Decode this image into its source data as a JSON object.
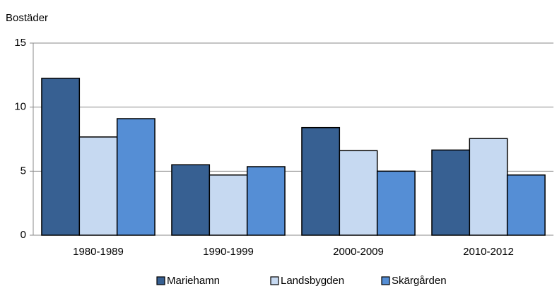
{
  "chart_data": {
    "type": "bar",
    "y_label": "Bostäder",
    "categories": [
      "1980-1989",
      "1990-1999",
      "2000-2009",
      "2010-2012"
    ],
    "series": [
      {
        "name": "Mariehamn",
        "color": "#376092",
        "values": [
          12.25,
          5.5,
          8.4,
          6.65
        ]
      },
      {
        "name": "Landsbygden",
        "color": "#c6d9f1",
        "values": [
          7.67,
          4.7,
          6.6,
          7.55
        ]
      },
      {
        "name": "Skärgården",
        "color": "#558ed5",
        "values": [
          9.1,
          5.35,
          5.0,
          4.7
        ]
      }
    ],
    "ylim": [
      0,
      15
    ],
    "yticks": [
      0,
      5,
      10,
      15
    ],
    "grid": true,
    "legend": "bottom"
  }
}
